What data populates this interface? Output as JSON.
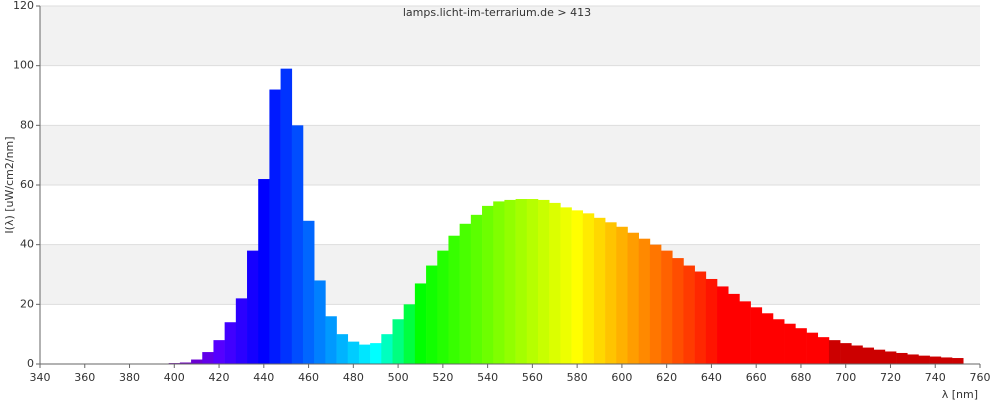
{
  "chart_data": {
    "type": "bar",
    "title": "lamps.licht-im-terrarium.de > 413",
    "x_label": "λ [nm]",
    "y_label": "I(λ)  [uW/cm2/nm]",
    "x": [
      400,
      405,
      410,
      415,
      420,
      425,
      430,
      435,
      440,
      445,
      450,
      455,
      460,
      465,
      470,
      475,
      480,
      485,
      490,
      495,
      500,
      505,
      510,
      515,
      520,
      525,
      530,
      535,
      540,
      545,
      550,
      555,
      560,
      565,
      570,
      575,
      580,
      585,
      590,
      595,
      600,
      605,
      610,
      615,
      620,
      625,
      630,
      635,
      640,
      645,
      650,
      655,
      660,
      665,
      670,
      675,
      680,
      685,
      690,
      695,
      700,
      705,
      710,
      715,
      720,
      725,
      730,
      735,
      740,
      745,
      750
    ],
    "values": [
      0.3,
      0.5,
      1.5,
      4,
      8,
      14,
      22,
      38,
      62,
      92,
      99,
      80,
      48,
      28,
      16,
      10,
      7.5,
      6.5,
      7,
      10,
      15,
      20,
      27,
      33,
      38,
      43,
      47,
      50,
      53,
      54.5,
      55,
      55.3,
      55.3,
      55,
      54,
      52.5,
      51.5,
      50.5,
      49,
      47.5,
      46,
      44,
      42,
      40,
      38,
      35.5,
      33,
      31,
      28.5,
      26,
      23.5,
      21,
      19,
      17,
      15,
      13.5,
      12,
      10.5,
      9,
      8,
      7,
      6.2,
      5.5,
      4.8,
      4.2,
      3.7,
      3.2,
      2.8,
      2.5,
      2.2,
      2
    ],
    "xlim": [
      340,
      760
    ],
    "ylim": [
      0,
      120
    ],
    "xticks": [
      340,
      360,
      380,
      400,
      420,
      440,
      460,
      480,
      500,
      520,
      540,
      560,
      580,
      600,
      620,
      640,
      660,
      680,
      700,
      720,
      740,
      760
    ],
    "yticks": [
      0,
      20,
      40,
      60,
      80,
      100,
      120
    ],
    "grid": true
  }
}
